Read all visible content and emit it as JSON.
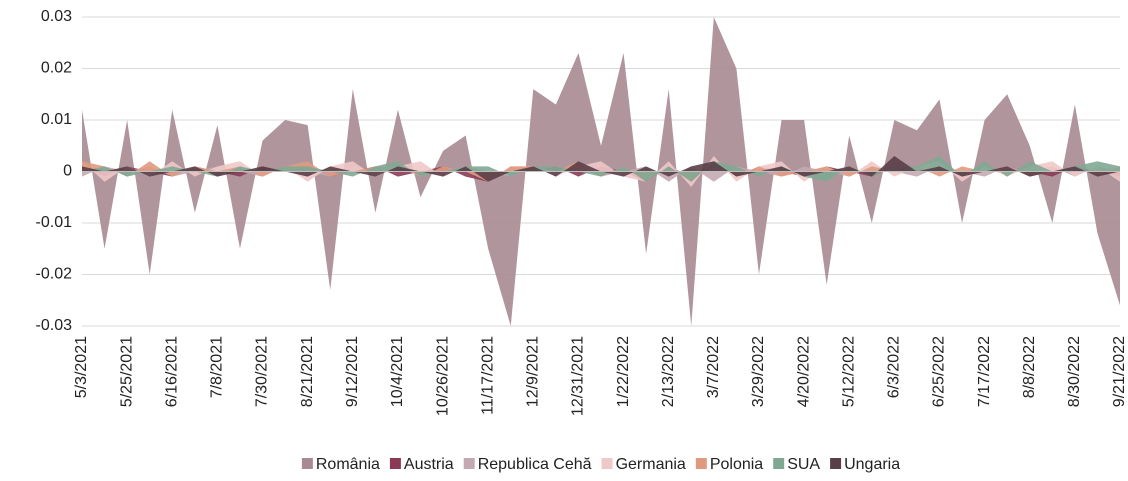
{
  "chart_data": {
    "type": "area",
    "x": [
      "5/3/2021",
      null,
      "5/25/2021",
      null,
      "6/16/2021",
      null,
      "7/8/2021",
      null,
      "7/30/2021",
      null,
      "8/21/2021",
      null,
      "9/12/2021",
      null,
      "10/4/2021",
      null,
      "10/26/2021",
      null,
      "11/17/2021",
      null,
      "12/9/2021",
      null,
      "12/31/2021",
      null,
      "1/22/2022",
      null,
      "2/13/2022",
      null,
      "3/7/2022",
      null,
      "3/29/2022",
      null,
      "4/20/2022",
      null,
      "5/12/2022",
      null,
      "6/3/2022",
      null,
      "6/25/2022",
      null,
      "7/17/2022",
      null,
      "8/8/2022",
      null,
      "8/30/2022",
      null,
      "9/21/2022"
    ],
    "ylim": [
      -0.03,
      0.03
    ],
    "yticks": [
      -0.03,
      -0.02,
      -0.01,
      0,
      0.01,
      0.02,
      0.03
    ],
    "grid": true,
    "legend": "bottom",
    "series": [
      {
        "name": "România",
        "color": "#a88a92",
        "values": [
          0.012,
          -0.015,
          0.01,
          -0.02,
          0.012,
          -0.008,
          0.009,
          -0.015,
          0.006,
          0.01,
          0.009,
          -0.023,
          0.016,
          -0.008,
          0.012,
          -0.005,
          0.004,
          0.007,
          -0.015,
          -0.03,
          0.016,
          0.013,
          0.023,
          0.005,
          0.023,
          -0.016,
          0.016,
          -0.03,
          0.03,
          0.02,
          -0.02,
          0.01,
          0.01,
          -0.022,
          0.007,
          -0.01,
          0.01,
          0.008,
          0.014,
          -0.01,
          0.01,
          0.015,
          0.005,
          -0.01,
          0.013,
          -0.012,
          -0.026
        ]
      },
      {
        "name": "Austria",
        "color": "#8b3a55",
        "values": [
          0.001,
          -0.001,
          0.001,
          0,
          -0.001,
          0.001,
          0,
          -0.001,
          0.001,
          0,
          0.001,
          -0.001,
          0,
          0.001,
          -0.001,
          0,
          0.001,
          -0.001,
          -0.002,
          0.001,
          0,
          0.001,
          -0.001,
          0.001,
          0,
          -0.002,
          0.001,
          -0.001,
          0.002,
          -0.001,
          0.001,
          0,
          -0.001,
          0.001,
          0,
          -0.001,
          0.001,
          0,
          0.001,
          -0.001,
          0,
          0.001,
          0,
          -0.001,
          0.001,
          0,
          -0.001
        ]
      },
      {
        "name": "Republica Cehă",
        "color": "#c4a8b2",
        "values": [
          -0.001,
          0.001,
          0,
          0.001,
          -0.001,
          0,
          0.001,
          0,
          -0.001,
          0.001,
          0,
          -0.001,
          0.001,
          0,
          0.001,
          -0.001,
          0,
          0.001,
          0,
          -0.001,
          0.001,
          0,
          0.001,
          -0.001,
          0,
          0.001,
          -0.002,
          0.001,
          -0.002,
          0.001,
          0,
          -0.001,
          0.001,
          0,
          -0.001,
          0.001,
          0,
          -0.001,
          0.001,
          0,
          -0.001,
          0.001,
          0,
          0.001,
          -0.001,
          0.001,
          0
        ]
      },
      {
        "name": "Germania",
        "color": "#efc8c8",
        "values": [
          0.002,
          -0.002,
          0.001,
          -0.001,
          0.002,
          -0.001,
          0.001,
          0.002,
          -0.001,
          0.001,
          -0.002,
          0.001,
          0.002,
          -0.001,
          0.001,
          0.002,
          -0.001,
          0.001,
          -0.002,
          0.001,
          0.001,
          -0.001,
          0.001,
          0.002,
          -0.001,
          -0.002,
          0.002,
          -0.003,
          0.003,
          -0.002,
          0.001,
          0.002,
          -0.002,
          0.001,
          -0.001,
          0.002,
          -0.001,
          0.001,
          0.002,
          -0.002,
          0.001,
          -0.001,
          0.001,
          0.002,
          -0.001,
          0.001,
          -0.002
        ]
      },
      {
        "name": "Polonia",
        "color": "#e09a80",
        "values": [
          0.002,
          0.001,
          -0.001,
          0.002,
          -0.001,
          0.001,
          0,
          0.001,
          -0.001,
          0.001,
          0.002,
          -0.001,
          0,
          0.001,
          0.001,
          -0.001,
          0.001,
          0,
          -0.002,
          0.001,
          0.001,
          0,
          0.002,
          -0.001,
          0.001,
          -0.002,
          0.001,
          -0.002,
          0.002,
          -0.001,
          0.001,
          -0.001,
          0,
          0.001,
          -0.001,
          0.001,
          0,
          0.001,
          -0.001,
          0.001,
          0,
          0.001,
          -0.001,
          0,
          0.001,
          -0.001,
          0.001
        ]
      },
      {
        "name": "SUA",
        "color": "#7fa893",
        "values": [
          0,
          0.001,
          -0.001,
          0,
          0.001,
          0,
          -0.001,
          0.001,
          0,
          0.001,
          0.001,
          0,
          -0.001,
          0.001,
          0.002,
          -0.001,
          0,
          0.001,
          0.001,
          -0.001,
          0.001,
          0.001,
          0,
          -0.001,
          0.001,
          -0.002,
          0.001,
          -0.002,
          0.002,
          0.001,
          -0.001,
          0.001,
          -0.001,
          -0.002,
          0.001,
          -0.001,
          0.001,
          0.001,
          0.003,
          -0.001,
          0.002,
          -0.001,
          0.002,
          0,
          0.001,
          0.002,
          0.001
        ]
      },
      {
        "name": "Ungaria",
        "color": "#5a3e48",
        "values": [
          0.001,
          0,
          0.001,
          -0.001,
          0,
          0.001,
          -0.001,
          0,
          0.001,
          0,
          -0.001,
          0.001,
          0,
          -0.001,
          0.001,
          0,
          -0.001,
          0.001,
          -0.002,
          0,
          0.001,
          -0.001,
          0.002,
          0,
          -0.001,
          0.001,
          -0.001,
          0.001,
          0.002,
          -0.001,
          0,
          0.001,
          -0.001,
          0,
          0.001,
          -0.001,
          0.003,
          0,
          0.001,
          -0.001,
          0,
          0.001,
          -0.001,
          0,
          0.001,
          -0.001,
          0
        ]
      }
    ]
  }
}
